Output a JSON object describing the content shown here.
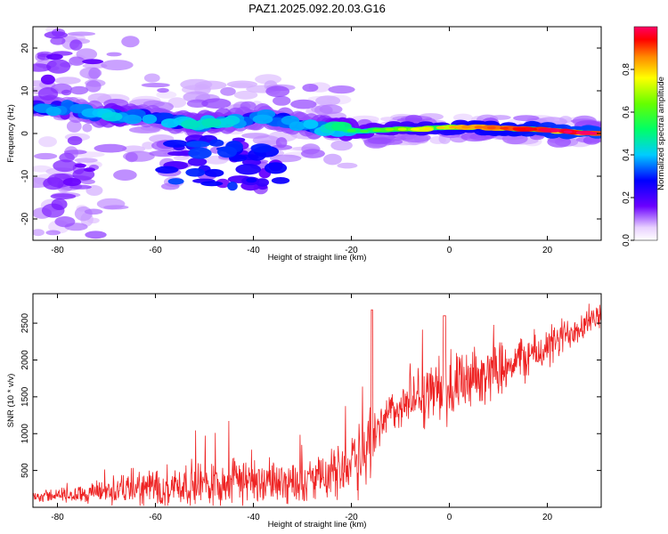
{
  "title": "PAZ1.2025.092.20.03.G16",
  "chart_data": [
    {
      "type": "heatmap",
      "xlabel": "Height of straight line (km)",
      "ylabel": "Frequency (Hz)",
      "xlim": [
        -85,
        31
      ],
      "ylim": [
        -25,
        25
      ],
      "x_ticks": [
        -80,
        -60,
        -40,
        -20,
        0,
        20
      ],
      "y_ticks": [
        -20,
        -10,
        0,
        10,
        20
      ],
      "colorbar": {
        "label": "Normalized spectral amplitude",
        "range": [
          0,
          1
        ],
        "ticks": [
          0.0,
          0.2,
          0.4,
          0.6,
          0.8
        ],
        "tick_labels": [
          "0.0",
          "0.2",
          "0.4",
          "0.6",
          "0.8"
        ]
      },
      "ridge": [
        {
          "x": -82,
          "f": 6.0,
          "a": 0.35
        },
        {
          "x": -78,
          "f": 6.0,
          "a": 0.3
        },
        {
          "x": -72,
          "f": 4.5,
          "a": 0.35
        },
        {
          "x": -68,
          "f": 4.0,
          "a": 0.45
        },
        {
          "x": -63,
          "f": 4.0,
          "a": 0.35
        },
        {
          "x": -58,
          "f": 3.0,
          "a": 0.35
        },
        {
          "x": -52,
          "f": 2.0,
          "a": 0.4
        },
        {
          "x": -47,
          "f": 3.0,
          "a": 0.4
        },
        {
          "x": -43,
          "f": 3.0,
          "a": 0.35
        },
        {
          "x": -38,
          "f": 4.0,
          "a": 0.35
        },
        {
          "x": -33,
          "f": 3.0,
          "a": 0.35
        },
        {
          "x": -28,
          "f": 1.5,
          "a": 0.35
        },
        {
          "x": -23,
          "f": 1.0,
          "a": 0.45
        },
        {
          "x": -18,
          "f": 0.5,
          "a": 0.45
        },
        {
          "x": -12,
          "f": 1.0,
          "a": 0.55
        },
        {
          "x": -6,
          "f": 1.0,
          "a": 0.65
        },
        {
          "x": 0,
          "f": 1.5,
          "a": 0.7
        },
        {
          "x": 5,
          "f": 1.5,
          "a": 0.75
        },
        {
          "x": 12,
          "f": 1.2,
          "a": 0.8
        },
        {
          "x": 18,
          "f": 1.0,
          "a": 0.85
        },
        {
          "x": 25,
          "f": 0.3,
          "a": 0.9
        },
        {
          "x": 30,
          "f": 0.0,
          "a": 0.92
        }
      ]
    },
    {
      "type": "line",
      "xlabel": "Height of straight line (km)",
      "ylabel": "SNR (10 * v/v)",
      "xlim": [
        -85,
        31
      ],
      "ylim": [
        0,
        2900
      ],
      "x_ticks": [
        -80,
        -60,
        -40,
        -20,
        0,
        20
      ],
      "y_ticks": [
        500,
        1000,
        1500,
        2000,
        2500
      ],
      "color": "#ee2222",
      "envelope": [
        {
          "x": -85,
          "mean": 150,
          "amp": 80
        },
        {
          "x": -75,
          "mean": 180,
          "amp": 120
        },
        {
          "x": -66,
          "mean": 250,
          "amp": 250
        },
        {
          "x": -55,
          "mean": 300,
          "amp": 300
        },
        {
          "x": -45,
          "mean": 350,
          "amp": 350
        },
        {
          "x": -35,
          "mean": 350,
          "amp": 300
        },
        {
          "x": -25,
          "mean": 400,
          "amp": 300
        },
        {
          "x": -20,
          "mean": 650,
          "amp": 450
        },
        {
          "x": -16,
          "mean": 800,
          "amp": 700
        },
        {
          "x": -14,
          "mean": 1200,
          "amp": 250
        },
        {
          "x": -8,
          "mean": 1450,
          "amp": 350
        },
        {
          "x": -2,
          "mean": 1600,
          "amp": 500
        },
        {
          "x": 2,
          "mean": 1600,
          "amp": 450
        },
        {
          "x": 10,
          "mean": 1900,
          "amp": 350
        },
        {
          "x": 20,
          "mean": 2150,
          "amp": 300
        },
        {
          "x": 26,
          "mean": 2450,
          "amp": 250
        },
        {
          "x": 31,
          "mean": 2600,
          "amp": 150
        }
      ]
    }
  ]
}
